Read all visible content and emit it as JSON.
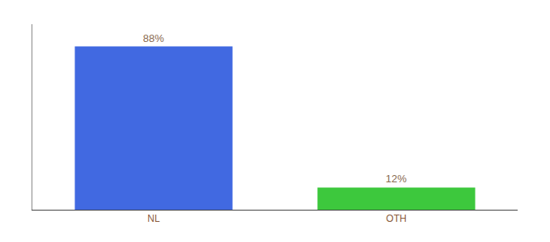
{
  "chart_data": {
    "type": "bar",
    "categories": [
      "NL",
      "OTH"
    ],
    "values": [
      88,
      12
    ],
    "value_labels": [
      "88%",
      "12%"
    ],
    "colors": [
      "#4169e1",
      "#3dc83d"
    ],
    "ylim": [
      0,
      100
    ],
    "grid": false,
    "data_labels": true,
    "tick_labels": "x"
  }
}
